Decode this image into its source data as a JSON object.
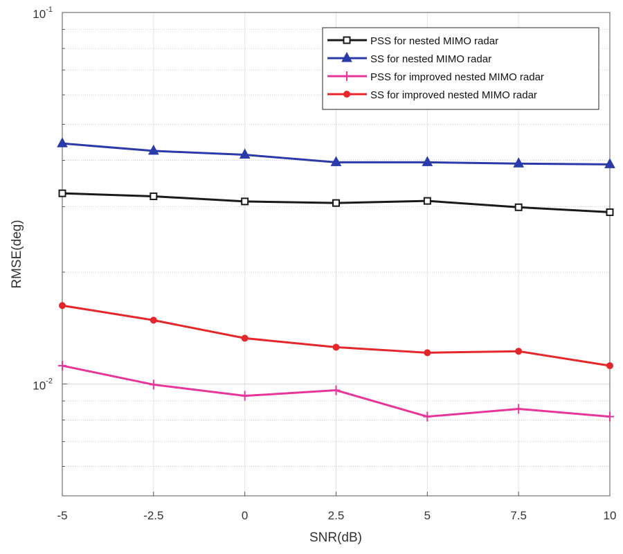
{
  "chart_data": {
    "type": "line",
    "title": "",
    "xlabel": "SNR(dB)",
    "ylabel": "RMSE(deg)",
    "yscale": "log",
    "xlim": [
      -5,
      10
    ],
    "ylim": [
      0.005,
      0.1
    ],
    "grid": true,
    "legend_position": "top-right",
    "x": [
      -5,
      -2.5,
      0,
      2.5,
      5,
      7.5,
      10
    ],
    "xtick_labels": [
      "-5",
      "-2.5",
      "0",
      "2.5",
      "5",
      "7.5",
      "10"
    ],
    "ytick_labels": [
      {
        "base": "10",
        "exp": "-2",
        "value": 0.01
      },
      {
        "base": "10",
        "exp": "-1",
        "value": 0.1
      }
    ],
    "series": [
      {
        "name": "PSS for nested MIMO radar",
        "color": "#1a1a1a",
        "marker": "square",
        "values": [
          0.0326,
          0.032,
          0.031,
          0.0307,
          0.0311,
          0.0299,
          0.029
        ]
      },
      {
        "name": "SS for nested MIMO radar",
        "color": "#2a3aa8",
        "marker": "triangle",
        "values": [
          0.0444,
          0.0424,
          0.0414,
          0.0395,
          0.0395,
          0.0392,
          0.039
        ]
      },
      {
        "name": "PSS for improved nested MIMO radar",
        "color": "#e8359a",
        "marker": "plus",
        "values": [
          0.0112,
          0.00996,
          0.00929,
          0.00962,
          0.00817,
          0.00857,
          0.00817
        ]
      },
      {
        "name": "SS for improved nested MIMO radar",
        "color": "#e5262a",
        "marker": "circle",
        "values": [
          0.01626,
          0.01485,
          0.01328,
          0.01256,
          0.01214,
          0.01225,
          0.0112
        ]
      }
    ]
  }
}
